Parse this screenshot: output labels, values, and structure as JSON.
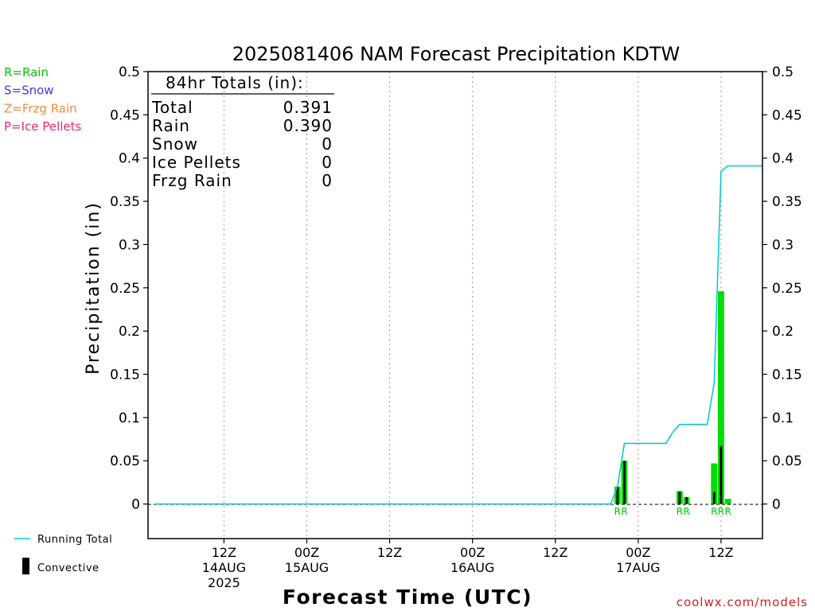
{
  "chart_data": {
    "type": "bar",
    "title": "2025081406 NAM Forecast Precipitation KDTW",
    "xlabel": "Forecast Time (UTC)",
    "ylabel": "Precipitation (in)",
    "ylim": [
      -0.04,
      0.5
    ],
    "y_ticks": [
      "0",
      "0.05",
      "0.1",
      "0.15",
      "0.2",
      "0.25",
      "0.3",
      "0.35",
      "0.4",
      "0.45",
      "0.5"
    ],
    "y_tick_values": [
      0,
      0.05,
      0.1,
      0.15,
      0.2,
      0.25,
      0.3,
      0.35,
      0.4,
      0.45,
      0.5
    ],
    "x_unit": "forecast hour",
    "xlim": [
      -5,
      84
    ],
    "x_ticks": [
      {
        "hour": 6,
        "lines": [
          "12Z",
          "14AUG",
          "2025"
        ]
      },
      {
        "hour": 18,
        "lines": [
          "00Z",
          "15AUG"
        ]
      },
      {
        "hour": 30,
        "lines": [
          "12Z"
        ]
      },
      {
        "hour": 42,
        "lines": [
          "00Z",
          "16AUG"
        ]
      },
      {
        "hour": 54,
        "lines": [
          "12Z"
        ]
      },
      {
        "hour": 66,
        "lines": [
          "00Z",
          "17AUG"
        ]
      },
      {
        "hour": 78,
        "lines": [
          "12Z"
        ]
      }
    ],
    "grid": "vertical dotted at tick hours",
    "series": [
      {
        "name": "Rain",
        "kind": "bar",
        "color": "#00dd00",
        "points": [
          {
            "hour": 63,
            "value": 0.02
          },
          {
            "hour": 64,
            "value": 0.05
          },
          {
            "hour": 72,
            "value": 0.015
          },
          {
            "hour": 73,
            "value": 0.008
          },
          {
            "hour": 77,
            "value": 0.047
          },
          {
            "hour": 78,
            "value": 0.246
          },
          {
            "hour": 79,
            "value": 0.006
          }
        ]
      },
      {
        "name": "Convective",
        "kind": "bar",
        "color": "#000000",
        "points": [
          {
            "hour": 63,
            "value": 0.02
          },
          {
            "hour": 64,
            "value": 0.05
          },
          {
            "hour": 72,
            "value": 0.014
          },
          {
            "hour": 73,
            "value": 0.008
          },
          {
            "hour": 77,
            "value": 0.014
          },
          {
            "hour": 78,
            "value": 0.067
          }
        ]
      },
      {
        "name": "Running Total",
        "kind": "line",
        "color": "#00c8c8",
        "points": [
          {
            "hour": -4,
            "value": 0
          },
          {
            "hour": 62,
            "value": 0
          },
          {
            "hour": 63,
            "value": 0.02
          },
          {
            "hour": 64,
            "value": 0.07
          },
          {
            "hour": 70,
            "value": 0.07
          },
          {
            "hour": 71,
            "value": 0.083
          },
          {
            "hour": 72,
            "value": 0.092
          },
          {
            "hour": 76,
            "value": 0.092
          },
          {
            "hour": 77,
            "value": 0.14
          },
          {
            "hour": 78,
            "value": 0.385
          },
          {
            "hour": 79,
            "value": 0.391
          },
          {
            "hour": 84,
            "value": 0.391
          }
        ]
      }
    ],
    "ptype_markers": [
      {
        "hour": 63,
        "label": "R"
      },
      {
        "hour": 64,
        "label": "R"
      },
      {
        "hour": 72,
        "label": "R"
      },
      {
        "hour": 73,
        "label": "R"
      },
      {
        "hour": 77,
        "label": "R"
      },
      {
        "hour": 78,
        "label": "R"
      },
      {
        "hour": 79,
        "label": "R"
      }
    ],
    "totals_box": {
      "heading": "84hr Totals (in):",
      "rows": [
        {
          "label": "Total",
          "value": "0.391"
        },
        {
          "label": "Rain",
          "value": "0.390"
        },
        {
          "label": "Snow",
          "value": "0"
        },
        {
          "label": "Ice Pellets",
          "value": "0"
        },
        {
          "label": "Frzg Rain",
          "value": "0"
        }
      ]
    },
    "ptype_legend": [
      {
        "label": "R=Rain",
        "color": "#00c800"
      },
      {
        "label": "S=Snow",
        "color": "#3c3cdc"
      },
      {
        "label": "Z=Frzg Rain",
        "color": "#f08c3c"
      },
      {
        "label": "P=Ice Pellets",
        "color": "#e6287a"
      }
    ],
    "bottom_legend": [
      {
        "label": "Running Total",
        "symbol": "line",
        "color": "#00c8c8"
      },
      {
        "label": "Convective",
        "symbol": "bar",
        "color": "#000000"
      }
    ],
    "credit": "coolwx.com/models",
    "credit_color": "#d21e1e"
  }
}
